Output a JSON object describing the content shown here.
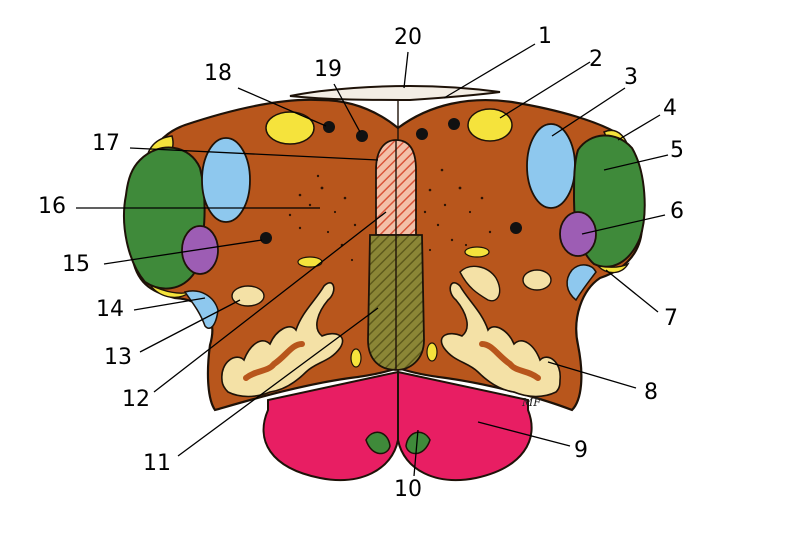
{
  "diagram": {
    "labels": [
      "1",
      "2",
      "3",
      "4",
      "5",
      "6",
      "7",
      "8",
      "9",
      "10",
      "11",
      "12",
      "13",
      "14",
      "15",
      "16",
      "17",
      "18",
      "19",
      "20"
    ],
    "signature": "MF",
    "colors": {
      "tissue": "#b8561c",
      "outline": "#1e1208",
      "light_blue": "#8ec8ee",
      "yellow": "#f5e33c",
      "green": "#3f8a3a",
      "purple": "#9d5db4",
      "pink": "#e81e63",
      "pale_nucleus": "#f4e1a6",
      "hatch_red": "#e07358",
      "hatch_olive": "#7b7a2e",
      "black": "#111111"
    }
  }
}
